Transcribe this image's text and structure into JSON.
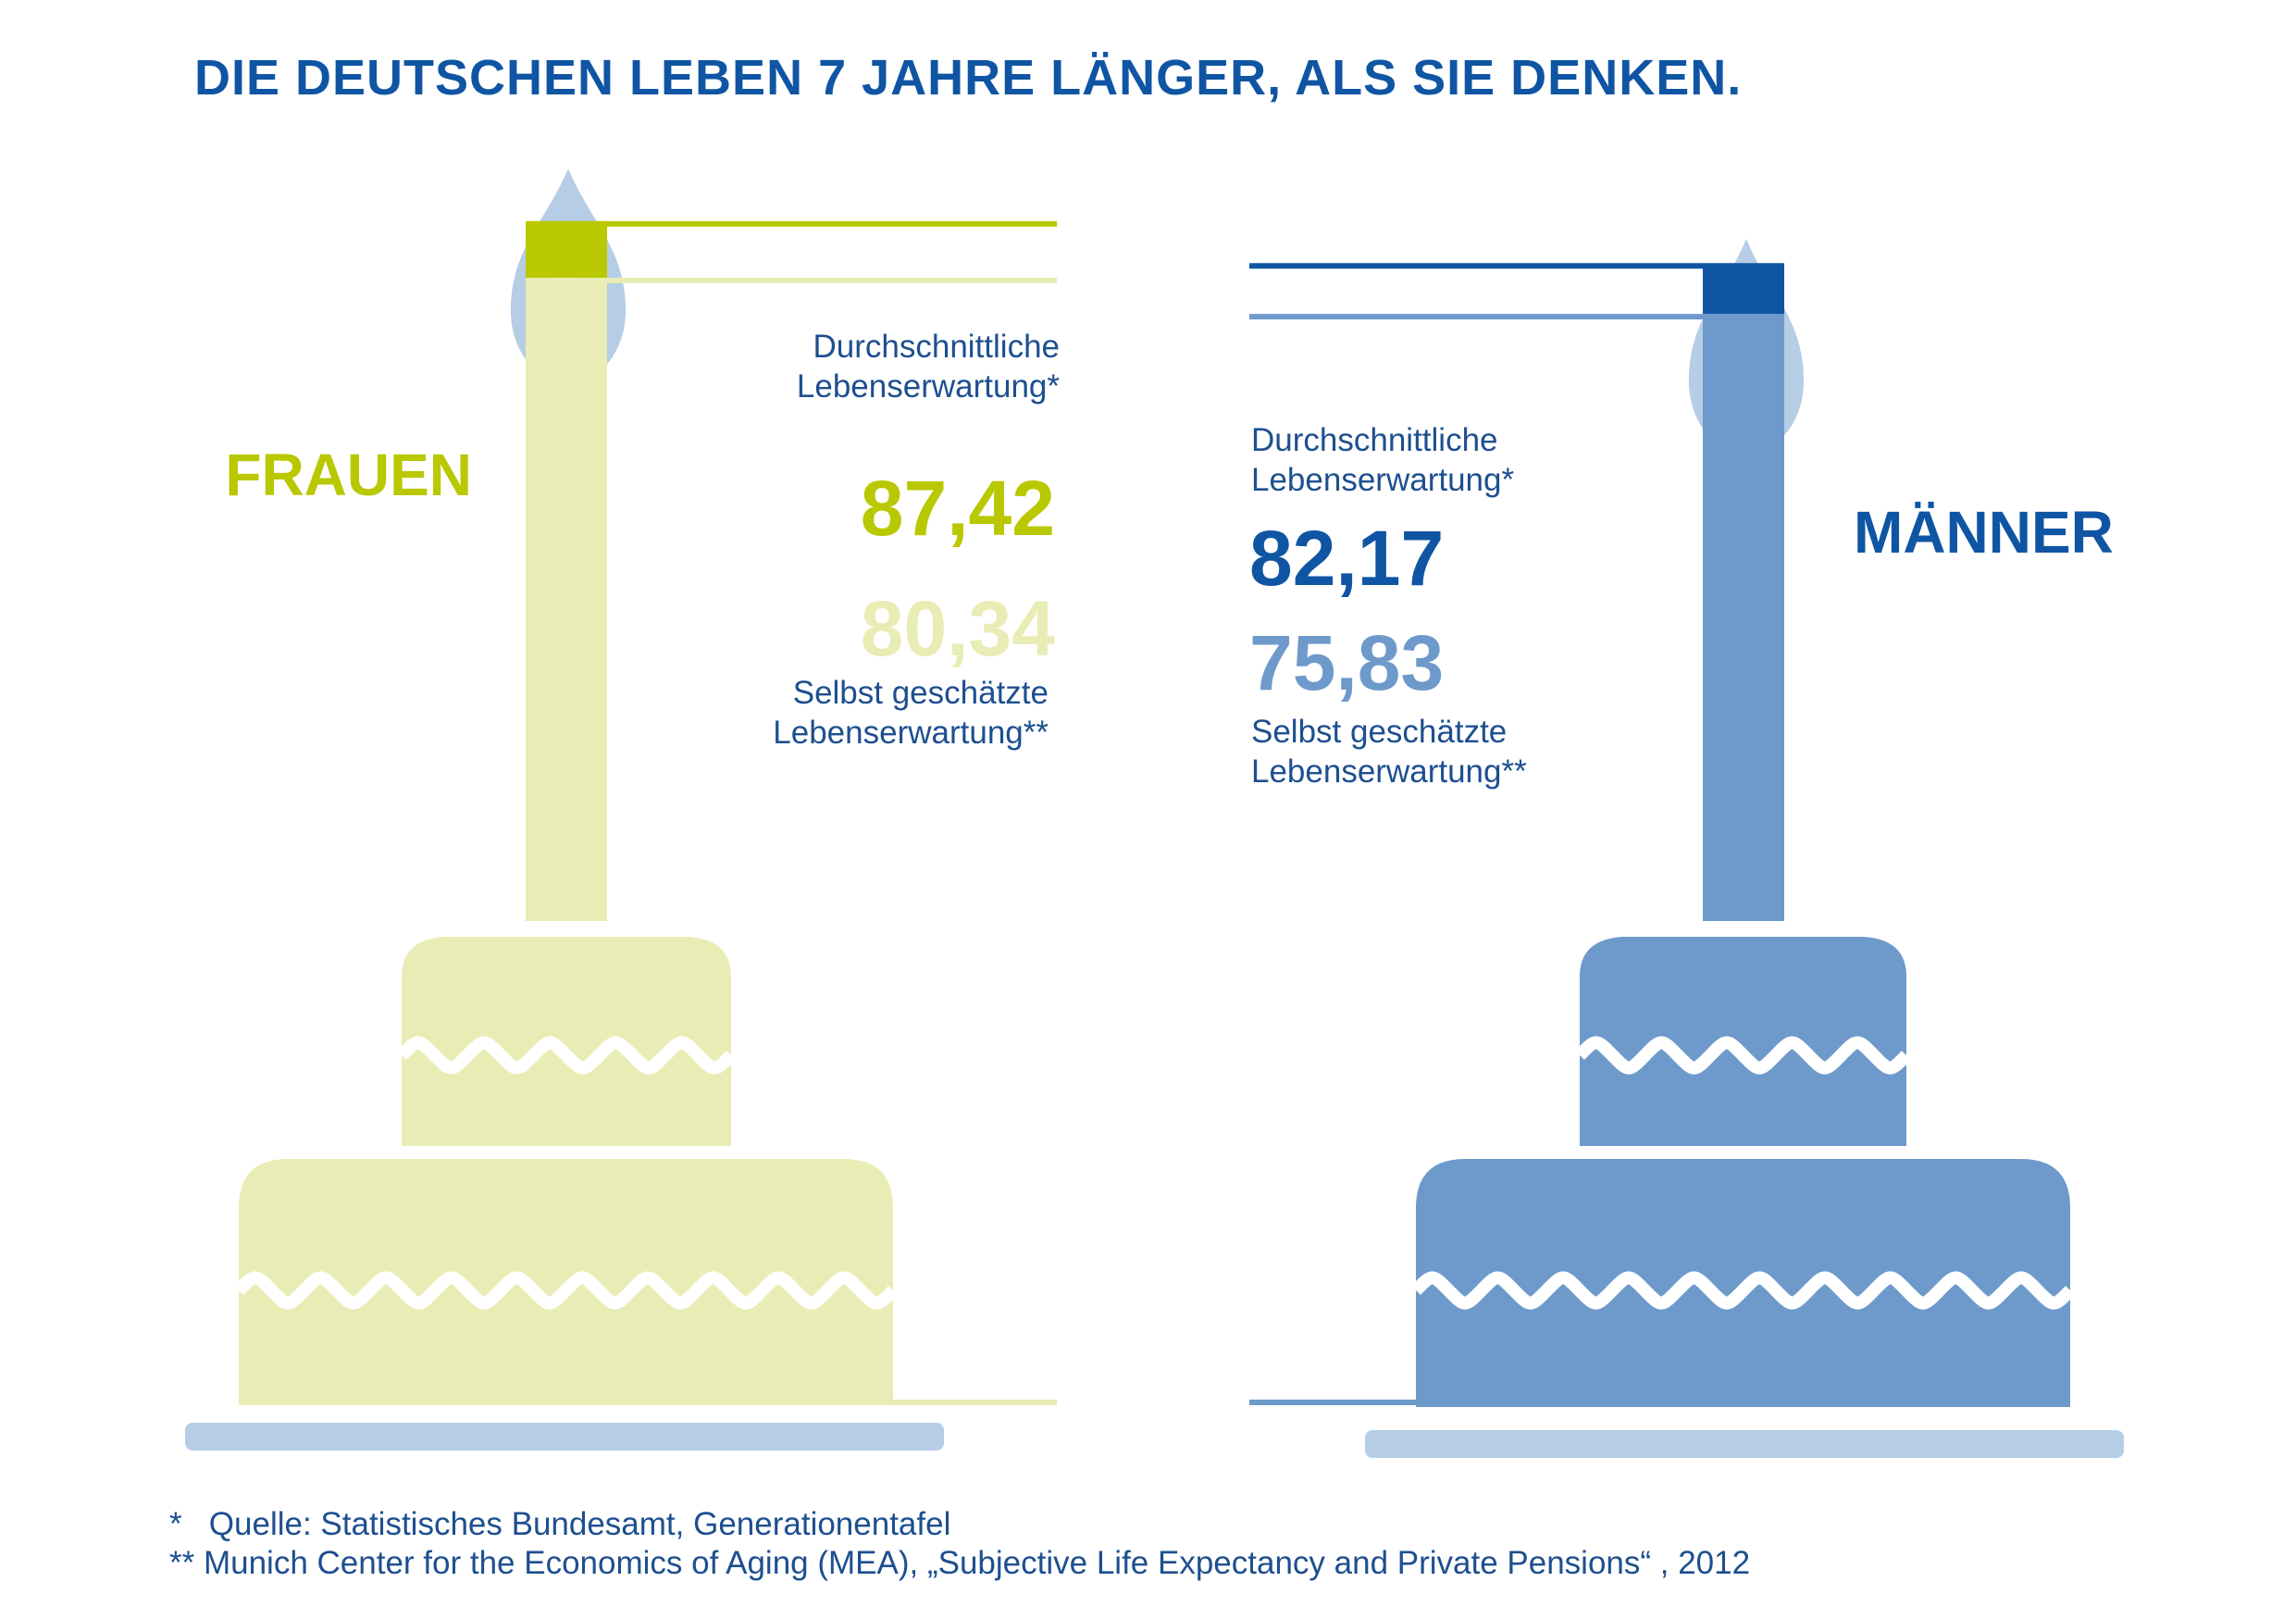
{
  "title": "DIE DEUTSCHEN LEBEN 7 JAHRE LÄNGER, ALS SIE DENKEN.",
  "colors": {
    "title": "#0f55a3",
    "text": "#1d4f8f",
    "women_dark": "#b9c800",
    "women_light": "#e9edb5",
    "men_dark": "#0f55a3",
    "men_light": "#6e9acb",
    "flame": "#b6cde6",
    "plate": "#b6cde6",
    "background": "#ffffff"
  },
  "chart_data": {
    "type": "bar",
    "categories": [
      "FRAUEN",
      "MÄNNER"
    ],
    "series": [
      {
        "name": "Durchschnittliche Lebenserwartung*",
        "values": [
          87.42,
          82.17
        ]
      },
      {
        "name": "Selbst geschätzte Lebenserwartung**",
        "values": [
          80.34,
          75.83
        ]
      }
    ]
  },
  "women": {
    "label": "FRAUEN",
    "avg_value": "87,42",
    "avg_label_line1": "Durchschnittliche",
    "avg_label_line2": "Lebenserwartung*",
    "self_value": "80,34",
    "self_label_line1": "Selbst geschätzte",
    "self_label_line2": "Lebenserwartung**"
  },
  "men": {
    "label": "MÄNNER",
    "avg_value": "82,17",
    "avg_label_line1": "Durchschnittliche",
    "avg_label_line2": "Lebenserwartung*",
    "self_value": "75,83",
    "self_label_line1": "Selbst geschätzte",
    "self_label_line2": "Lebenserwartung**"
  },
  "footnotes": {
    "line1": "*   Quelle: Statistisches Bundesamt, Generationentafel",
    "line2": "** Munich Center for the Economics of Aging (MEA), „Subjective Life Expectancy and Private Pensions“ , 2012"
  }
}
